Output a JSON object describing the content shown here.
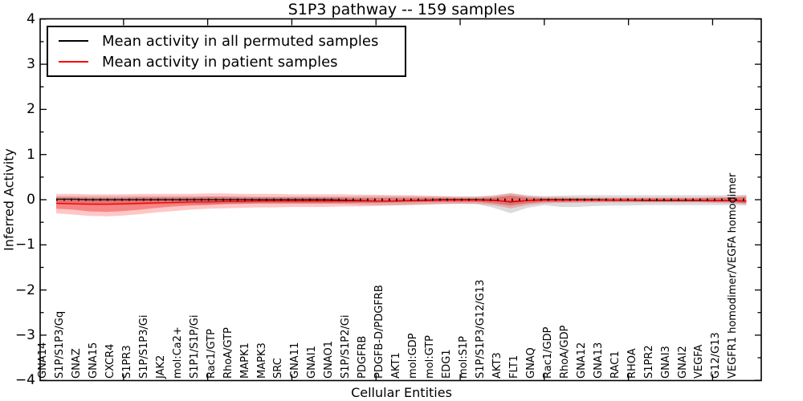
{
  "title": "S1P3 pathway -- 159 samples",
  "xlabel": "Cellular Entities",
  "ylabel": "Inferred Activity",
  "legend": {
    "position": "upper left",
    "items": [
      {
        "label": "Mean activity in all permuted samples",
        "color": "#000000"
      },
      {
        "label": "Mean activity in patient samples",
        "color": "#ff0000"
      }
    ]
  },
  "colors": {
    "frame": "#000000",
    "permuted_line": "#1a1a1a",
    "patient_line": "#ff0000",
    "zero_dash": "#111111",
    "gray_band": "rgba(0,0,0,0.14)",
    "red_band_outer": "rgba(255,0,0,0.22)",
    "red_band_inner": "rgba(230,0,0,0.33)"
  },
  "chart_data": {
    "type": "line",
    "title": "S1P3 pathway -- 159 samples",
    "xlabel": "Cellular Entities",
    "ylabel": "Inferred Activity",
    "ylim": [
      -4,
      4
    ],
    "yticks": [
      4,
      3,
      2,
      1,
      0,
      -1,
      -2,
      -3,
      -4
    ],
    "xticks_major_positions": [
      5,
      10,
      15,
      20,
      25,
      30,
      35,
      40
    ],
    "grid": false,
    "legend_position": "upper left",
    "categories": [
      "GNA14",
      "S1P/S1P3/Gq",
      "GNAZ",
      "GNA15",
      "CXCR4",
      "S1PR3",
      "S1P/S1P3/Gi",
      "JAK2",
      "mol:Ca2+",
      "S1P1/S1P/Gi",
      "Rac1/GTP",
      "RhoA/GTP",
      "MAPK1",
      "MAPK3",
      "SRC",
      "GNA11",
      "GNAI1",
      "GNAO1",
      "S1P/S1P2/Gi",
      "PDGFRB",
      "PDGFB-D/PDGFRB",
      "AKT1",
      "mol:GDP",
      "mol:GTP",
      "EDG1",
      "mol:S1P",
      "S1P/S1P3/G12/G13",
      "AKT3",
      "FLT1",
      "GNAQ",
      "Rac1/GDP",
      "RhoA/GDP",
      "GNA12",
      "GNA13",
      "RAC1",
      "RHOA",
      "S1PR2",
      "GNAI3",
      "GNAI2",
      "VEGFA",
      "G12/G13",
      "VEGFR1 homodimer/VEGFA homodimer"
    ],
    "series": [
      {
        "name": "Mean activity in all permuted samples",
        "color": "#1a1a1a",
        "values": [
          0.01,
          0.01,
          0.0,
          0.0,
          0.0,
          0.0,
          0.0,
          0.0,
          0.0,
          0.0,
          0.0,
          0.0,
          0.0,
          0.0,
          0.0,
          0.0,
          0.0,
          -0.01,
          -0.02,
          -0.03,
          -0.03,
          -0.02,
          -0.01,
          0.0,
          0.0,
          0.0,
          -0.01,
          -0.05,
          -0.02,
          0.0,
          0.0,
          0.0,
          0.0,
          -0.01,
          -0.01,
          -0.02,
          -0.02,
          -0.02,
          -0.02,
          -0.02,
          -0.02,
          -0.03
        ]
      },
      {
        "name": "Mean activity in patient samples",
        "color": "#ff0000",
        "values": [
          -0.08,
          -0.09,
          -0.1,
          -0.1,
          -0.09,
          -0.08,
          -0.07,
          -0.06,
          -0.05,
          -0.05,
          -0.04,
          -0.04,
          -0.03,
          -0.03,
          -0.03,
          -0.03,
          -0.03,
          -0.03,
          -0.03,
          -0.03,
          -0.03,
          -0.02,
          -0.02,
          -0.01,
          -0.01,
          -0.01,
          -0.02,
          -0.04,
          -0.02,
          -0.01,
          -0.01,
          -0.01,
          -0.01,
          -0.01,
          -0.01,
          -0.01,
          -0.01,
          -0.01,
          -0.01,
          -0.02,
          -0.02,
          -0.03
        ]
      }
    ],
    "bands": [
      {
        "name": "permuted-std-band",
        "color": "rgba(0,0,0,0.14)",
        "hi": [
          0.08,
          0.08,
          0.08,
          0.08,
          0.08,
          0.08,
          0.08,
          0.08,
          0.08,
          0.08,
          0.08,
          0.08,
          0.07,
          0.07,
          0.07,
          0.07,
          0.07,
          0.07,
          0.08,
          0.08,
          0.08,
          0.08,
          0.07,
          0.07,
          0.07,
          0.07,
          0.1,
          0.15,
          0.1,
          0.08,
          0.09,
          0.1,
          0.1,
          0.1,
          0.1,
          0.1,
          0.1,
          0.1,
          0.1,
          0.1,
          0.1,
          0.11
        ],
        "lo": [
          -0.1,
          -0.11,
          -0.12,
          -0.12,
          -0.12,
          -0.11,
          -0.1,
          -0.1,
          -0.1,
          -0.1,
          -0.09,
          -0.09,
          -0.09,
          -0.09,
          -0.09,
          -0.09,
          -0.09,
          -0.09,
          -0.11,
          -0.12,
          -0.12,
          -0.11,
          -0.1,
          -0.09,
          -0.09,
          -0.1,
          -0.18,
          -0.3,
          -0.18,
          -0.12,
          -0.16,
          -0.16,
          -0.14,
          -0.13,
          -0.13,
          -0.12,
          -0.12,
          -0.12,
          -0.12,
          -0.12,
          -0.12,
          -0.13
        ]
      },
      {
        "name": "patient-outer-band",
        "color": "rgba(255,0,0,0.22)",
        "hi": [
          0.13,
          0.13,
          0.12,
          0.12,
          0.12,
          0.13,
          0.13,
          0.13,
          0.13,
          0.14,
          0.14,
          0.13,
          0.13,
          0.13,
          0.12,
          0.12,
          0.12,
          0.12,
          0.11,
          0.11,
          0.1,
          0.1,
          0.09,
          0.08,
          0.07,
          0.07,
          0.08,
          0.14,
          0.08,
          0.06,
          0.06,
          0.05,
          0.05,
          0.05,
          0.05,
          0.05,
          0.05,
          0.05,
          0.05,
          0.06,
          0.06,
          0.09
        ],
        "lo": [
          -0.3,
          -0.33,
          -0.36,
          -0.37,
          -0.35,
          -0.32,
          -0.28,
          -0.25,
          -0.22,
          -0.2,
          -0.19,
          -0.18,
          -0.17,
          -0.17,
          -0.16,
          -0.16,
          -0.16,
          -0.15,
          -0.15,
          -0.14,
          -0.13,
          -0.12,
          -0.11,
          -0.1,
          -0.09,
          -0.09,
          -0.12,
          -0.19,
          -0.12,
          -0.08,
          -0.07,
          -0.07,
          -0.06,
          -0.06,
          -0.06,
          -0.06,
          -0.06,
          -0.06,
          -0.06,
          -0.07,
          -0.08,
          -0.1
        ]
      },
      {
        "name": "patient-inner-band",
        "color": "rgba(230,0,0,0.33)",
        "hi": [
          0.05,
          0.05,
          0.04,
          0.04,
          0.04,
          0.05,
          0.05,
          0.05,
          0.05,
          0.06,
          0.06,
          0.05,
          0.05,
          0.05,
          0.05,
          0.05,
          0.05,
          0.05,
          0.04,
          0.04,
          0.04,
          0.04,
          0.04,
          0.04,
          0.03,
          0.03,
          0.05,
          0.09,
          0.05,
          0.03,
          0.03,
          0.03,
          0.03,
          0.03,
          0.03,
          0.03,
          0.03,
          0.03,
          0.03,
          0.04,
          0.04,
          0.06
        ],
        "lo": [
          -0.2,
          -0.22,
          -0.26,
          -0.27,
          -0.25,
          -0.22,
          -0.18,
          -0.15,
          -0.13,
          -0.12,
          -0.1,
          -0.09,
          -0.08,
          -0.08,
          -0.08,
          -0.08,
          -0.08,
          -0.08,
          -0.07,
          -0.07,
          -0.06,
          -0.06,
          -0.05,
          -0.05,
          -0.05,
          -0.05,
          -0.08,
          -0.13,
          -0.08,
          -0.05,
          -0.05,
          -0.04,
          -0.04,
          -0.04,
          -0.04,
          -0.04,
          -0.04,
          -0.04,
          -0.04,
          -0.05,
          -0.05,
          -0.08
        ]
      }
    ],
    "zero_line": {
      "value": 0,
      "style": "dashed",
      "color": "#111111"
    }
  }
}
